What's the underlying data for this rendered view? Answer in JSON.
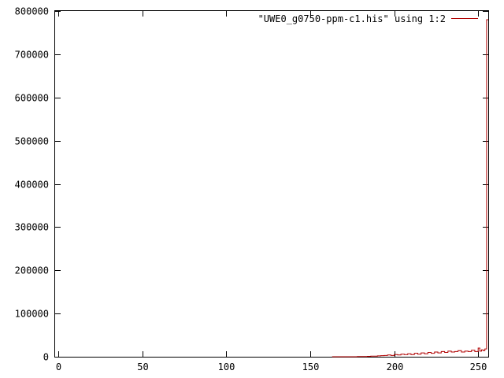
{
  "chart_data": {
    "type": "line",
    "style": "histogram-steps",
    "series": [
      {
        "name": "\"UWE0_g0750-ppm-c1.his\" using 1:2",
        "color": "#b00000",
        "x": [
          163,
          170,
          178,
          184,
          186,
          190,
          192,
          194,
          196,
          198,
          200,
          202,
          204,
          206,
          208,
          210,
          212,
          214,
          216,
          218,
          220,
          222,
          224,
          226,
          228,
          230,
          232,
          234,
          236,
          238,
          240,
          242,
          244,
          246,
          248,
          250,
          251,
          252,
          253,
          254,
          255,
          256
        ],
        "y": [
          0,
          0,
          500,
          1000,
          1500,
          2000,
          2500,
          3000,
          4000,
          3000,
          5000,
          4000,
          6000,
          5000,
          7000,
          5000,
          8000,
          6000,
          9000,
          7000,
          10000,
          8000,
          11000,
          9000,
          12000,
          10000,
          13000,
          11000,
          12000,
          14000,
          11000,
          13000,
          12000,
          15000,
          12000,
          20000,
          13000,
          16000,
          14000,
          18000,
          780000,
          780000
        ]
      }
    ],
    "xlim": [
      -2,
      256
    ],
    "ylim": [
      0,
      800000
    ],
    "x_ticks": [
      "0",
      "50",
      "100",
      "150",
      "200",
      "250"
    ],
    "x_tick_values": [
      0,
      50,
      100,
      150,
      200,
      250
    ],
    "y_ticks": [
      "0",
      "100000",
      "200000",
      "300000",
      "400000",
      "500000",
      "600000",
      "700000",
      "800000"
    ],
    "y_tick_values": [
      0,
      100000,
      200000,
      300000,
      400000,
      500000,
      600000,
      700000,
      800000
    ],
    "legend_placement": "top-right",
    "grid": false
  }
}
